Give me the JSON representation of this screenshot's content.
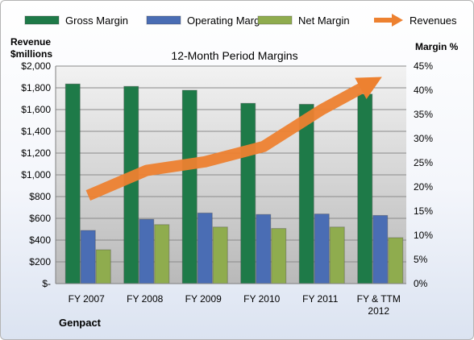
{
  "chart_data": {
    "type": "bar",
    "title": "12-Month Period Margins",
    "company": "Genpact",
    "y_left_label": [
      "Revenue",
      "$millions"
    ],
    "y_right_label": "Margin %",
    "categories": [
      "FY 2007",
      "FY 2008",
      "FY 2009",
      "FY 2010",
      "FY 2011",
      "FY & TTM 2012"
    ],
    "y_left_ticks": [
      "$-",
      "$200",
      "$400",
      "$600",
      "$800",
      "$1,000",
      "$1,200",
      "$1,400",
      "$1,600",
      "$1,800",
      "$2,000"
    ],
    "y_right_ticks": [
      "0%",
      "5%",
      "10%",
      "15%",
      "20%",
      "25%",
      "30%",
      "35%",
      "40%",
      "45%"
    ],
    "ylim_left": [
      0,
      2000
    ],
    "ylim_right": [
      0,
      45
    ],
    "grid": true,
    "legend_position": "top",
    "series": [
      {
        "name": "Gross Margin",
        "type": "bar",
        "axis": "right",
        "color": "#1e7a48",
        "values": [
          41.3,
          40.8,
          40.0,
          37.3,
          37.1,
          39.2
        ]
      },
      {
        "name": "Operating Margin",
        "type": "bar",
        "axis": "right",
        "color": "#4a6db4",
        "values": [
          11.0,
          13.3,
          14.6,
          14.3,
          14.4,
          14.1
        ]
      },
      {
        "name": "Net Margin",
        "type": "bar",
        "axis": "right",
        "color": "#8fac4e",
        "values": [
          7.0,
          12.2,
          11.7,
          11.4,
          11.7,
          9.5
        ]
      },
      {
        "name": "Revenues",
        "type": "arrow-line",
        "axis": "left",
        "color": "#ed8130",
        "values": [
          810,
          1040,
          1120,
          1260,
          1600,
          1900
        ]
      }
    ]
  }
}
